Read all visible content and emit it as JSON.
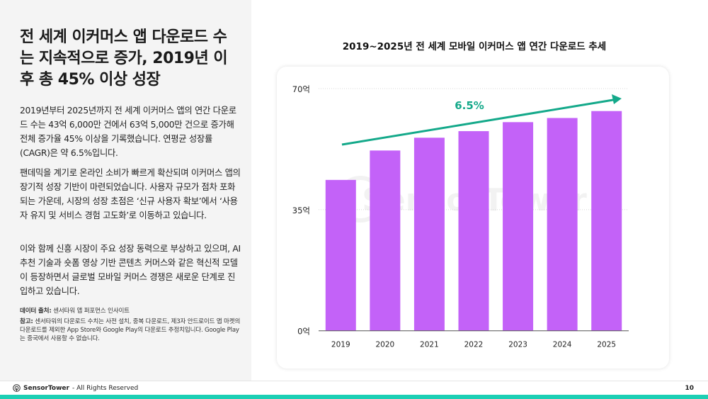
{
  "headline": "전 세계 이커머스 앱 다운로드 수는 지속적으로 증가, 2019년 이후 총 45% 이상 성장",
  "paragraphs": [
    "2019년부터 2025년까지 전 세계 이커머스 앱의 연간 다운로드 수는 43억 6,000만 건에서 63억 5,000만 건으로 증가해 전체 증가율 45% 이상을 기록했습니다. 연평균 성장률(CAGR)은 약 6.5%입니다.",
    "팬데믹을 계기로 온라인 소비가 빠르게 확산되며 이커머스 앱의 장기적 성장 기반이 마련되었습니다. 사용자 규모가 점차 포화되는 가운데, 시장의 성장 초점은 ‘신규 사용자 확보’에서 ‘사용자 유지 및 서비스 경험 고도화’로 이동하고 있습니다.",
    "이와 함께 신흥 시장이 주요 성장 동력으로 부상하고 있으며, AI 추천 기술과 숏폼 영상 기반 콘텐츠 커머스와 같은 혁신적 모델이 등장하면서 글로벌 모바일 커머스 경쟁은 새로운 단계로 진입하고 있습니다."
  ],
  "source": {
    "label": "데이터 출처:",
    "text": " 센서타워 앱 퍼포먼스 인사이트"
  },
  "note": {
    "label": "참고:",
    "text": " 센서타워의 다운로드 수치는 사전 설치, 중복 다운로드, 제3자 안드로이드 앱 마켓의 다운로드를 제외한 App Store와 Google Play의 다운로드 추정치입니다. Google Play는 중국에서 사용할 수 없습니다."
  },
  "footer": {
    "brand": "SensorTower",
    "rights": "- All Rights Reserved",
    "page": "10"
  },
  "watermark": "SensorTower",
  "colors": {
    "bar": "#c362f8",
    "arrow": "#14a98a",
    "teal": "#1ccfb4"
  },
  "chart_data": {
    "type": "bar",
    "title": "2019~2025년 전 세계 모바일 이커머스 앱 연간 다운로드 추세",
    "categories": [
      "2019",
      "2020",
      "2021",
      "2022",
      "2023",
      "2024",
      "2025"
    ],
    "values": [
      43.6,
      52.1,
      55.8,
      57.7,
      60.3,
      61.5,
      63.5
    ],
    "ylim": [
      0,
      70
    ],
    "yticks": [
      {
        "v": 0,
        "label": "0억"
      },
      {
        "v": 35,
        "label": "35억"
      },
      {
        "v": 70,
        "label": "70억"
      }
    ],
    "grid": true,
    "annotation": "6.5%"
  }
}
